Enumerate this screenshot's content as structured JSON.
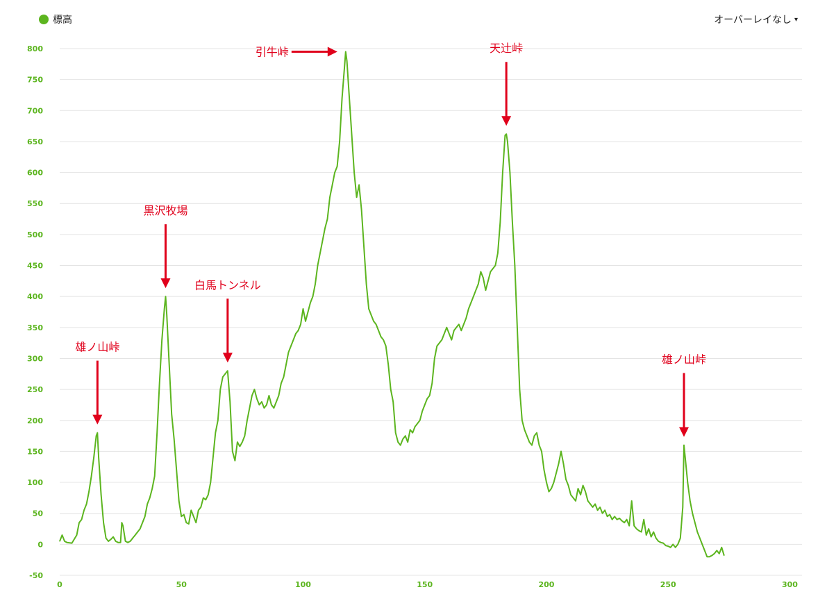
{
  "legend": {
    "label": "標高",
    "color": "#5cb51f"
  },
  "overlay": {
    "label": "オーバーレイなし",
    "caret_icon": "triangle-down-icon",
    "caret_char": "▾"
  },
  "colors": {
    "series": "#5cb51f",
    "axis_label": "#5cb51f",
    "grid": "#e4e4e4",
    "annotation": "#e0001b"
  },
  "chart_data": {
    "type": "line",
    "xlim": [
      0,
      305
    ],
    "ylim": [
      -50,
      800
    ],
    "yticks": [
      -50,
      0,
      50,
      100,
      150,
      200,
      250,
      300,
      350,
      400,
      450,
      500,
      550,
      600,
      650,
      700,
      750,
      800
    ],
    "xticks": [
      0,
      50,
      100,
      150,
      200,
      250,
      300
    ],
    "grid": true,
    "series": [
      {
        "name": "標高",
        "points": [
          [
            0,
            5
          ],
          [
            1,
            15
          ],
          [
            2,
            5
          ],
          [
            3,
            3
          ],
          [
            5,
            2
          ],
          [
            7,
            15
          ],
          [
            8,
            35
          ],
          [
            9,
            40
          ],
          [
            10,
            55
          ],
          [
            11,
            65
          ],
          [
            12,
            85
          ],
          [
            13,
            110
          ],
          [
            14,
            140
          ],
          [
            15,
            175
          ],
          [
            15.5,
            180
          ],
          [
            16,
            140
          ],
          [
            17,
            80
          ],
          [
            18,
            35
          ],
          [
            19,
            10
          ],
          [
            20,
            5
          ],
          [
            21,
            8
          ],
          [
            22,
            12
          ],
          [
            23,
            5
          ],
          [
            24,
            3
          ],
          [
            25,
            3
          ],
          [
            25.5,
            35
          ],
          [
            26,
            30
          ],
          [
            27,
            5
          ],
          [
            28,
            3
          ],
          [
            29,
            5
          ],
          [
            30,
            10
          ],
          [
            31,
            15
          ],
          [
            32,
            20
          ],
          [
            33,
            25
          ],
          [
            34,
            35
          ],
          [
            35,
            45
          ],
          [
            36,
            65
          ],
          [
            37,
            75
          ],
          [
            38,
            90
          ],
          [
            39,
            110
          ],
          [
            40,
            180
          ],
          [
            41,
            260
          ],
          [
            42,
            330
          ],
          [
            43,
            380
          ],
          [
            43.5,
            400
          ],
          [
            44,
            370
          ],
          [
            45,
            290
          ],
          [
            46,
            210
          ],
          [
            47,
            170
          ],
          [
            48,
            120
          ],
          [
            49,
            70
          ],
          [
            50,
            45
          ],
          [
            51,
            48
          ],
          [
            52,
            35
          ],
          [
            53,
            33
          ],
          [
            54,
            55
          ],
          [
            55,
            45
          ],
          [
            56,
            35
          ],
          [
            57,
            55
          ],
          [
            58,
            60
          ],
          [
            59,
            75
          ],
          [
            60,
            72
          ],
          [
            61,
            80
          ],
          [
            62,
            100
          ],
          [
            63,
            140
          ],
          [
            64,
            180
          ],
          [
            65,
            200
          ],
          [
            66,
            250
          ],
          [
            67,
            270
          ],
          [
            68,
            275
          ],
          [
            69,
            280
          ],
          [
            70,
            230
          ],
          [
            71,
            150
          ],
          [
            72,
            135
          ],
          [
            73,
            165
          ],
          [
            74,
            158
          ],
          [
            75,
            165
          ],
          [
            76,
            175
          ],
          [
            77,
            200
          ],
          [
            78,
            220
          ],
          [
            79,
            240
          ],
          [
            80,
            250
          ],
          [
            81,
            235
          ],
          [
            82,
            225
          ],
          [
            83,
            230
          ],
          [
            84,
            220
          ],
          [
            85,
            225
          ],
          [
            86,
            240
          ],
          [
            87,
            225
          ],
          [
            88,
            220
          ],
          [
            89,
            230
          ],
          [
            90,
            240
          ],
          [
            91,
            260
          ],
          [
            92,
            270
          ],
          [
            93,
            290
          ],
          [
            94,
            310
          ],
          [
            95,
            320
          ],
          [
            96,
            330
          ],
          [
            97,
            340
          ],
          [
            98,
            345
          ],
          [
            99,
            355
          ],
          [
            100,
            380
          ],
          [
            101,
            360
          ],
          [
            102,
            375
          ],
          [
            103,
            390
          ],
          [
            104,
            400
          ],
          [
            105,
            420
          ],
          [
            106,
            450
          ],
          [
            107,
            470
          ],
          [
            108,
            490
          ],
          [
            109,
            510
          ],
          [
            110,
            525
          ],
          [
            111,
            560
          ],
          [
            112,
            580
          ],
          [
            113,
            600
          ],
          [
            114,
            610
          ],
          [
            115,
            650
          ],
          [
            116,
            720
          ],
          [
            117,
            770
          ],
          [
            117.5,
            795
          ],
          [
            118,
            780
          ],
          [
            119,
            720
          ],
          [
            120,
            660
          ],
          [
            121,
            600
          ],
          [
            122,
            560
          ],
          [
            123,
            580
          ],
          [
            124,
            540
          ],
          [
            125,
            480
          ],
          [
            126,
            420
          ],
          [
            127,
            380
          ],
          [
            128,
            370
          ],
          [
            129,
            360
          ],
          [
            130,
            355
          ],
          [
            131,
            345
          ],
          [
            132,
            335
          ],
          [
            133,
            330
          ],
          [
            134,
            320
          ],
          [
            135,
            290
          ],
          [
            136,
            250
          ],
          [
            137,
            230
          ],
          [
            138,
            180
          ],
          [
            139,
            165
          ],
          [
            140,
            160
          ],
          [
            141,
            170
          ],
          [
            142,
            175
          ],
          [
            143,
            165
          ],
          [
            144,
            185
          ],
          [
            145,
            180
          ],
          [
            146,
            190
          ],
          [
            147,
            195
          ],
          [
            148,
            200
          ],
          [
            149,
            215
          ],
          [
            150,
            225
          ],
          [
            151,
            235
          ],
          [
            152,
            240
          ],
          [
            153,
            260
          ],
          [
            154,
            300
          ],
          [
            155,
            320
          ],
          [
            156,
            325
          ],
          [
            157,
            330
          ],
          [
            158,
            340
          ],
          [
            159,
            350
          ],
          [
            160,
            340
          ],
          [
            161,
            330
          ],
          [
            162,
            345
          ],
          [
            163,
            350
          ],
          [
            164,
            355
          ],
          [
            165,
            345
          ],
          [
            166,
            355
          ],
          [
            167,
            365
          ],
          [
            168,
            380
          ],
          [
            169,
            390
          ],
          [
            170,
            400
          ],
          [
            171,
            410
          ],
          [
            172,
            420
          ],
          [
            173,
            440
          ],
          [
            174,
            430
          ],
          [
            175,
            410
          ],
          [
            176,
            425
          ],
          [
            177,
            440
          ],
          [
            178,
            445
          ],
          [
            179,
            450
          ],
          [
            180,
            470
          ],
          [
            181,
            520
          ],
          [
            182,
            600
          ],
          [
            183,
            660
          ],
          [
            183.5,
            662
          ],
          [
            184,
            650
          ],
          [
            185,
            600
          ],
          [
            186,
            520
          ],
          [
            187,
            450
          ],
          [
            188,
            350
          ],
          [
            189,
            250
          ],
          [
            190,
            200
          ],
          [
            191,
            185
          ],
          [
            192,
            175
          ],
          [
            193,
            165
          ],
          [
            194,
            160
          ],
          [
            195,
            175
          ],
          [
            196,
            180
          ],
          [
            197,
            160
          ],
          [
            198,
            150
          ],
          [
            199,
            120
          ],
          [
            200,
            100
          ],
          [
            201,
            85
          ],
          [
            202,
            90
          ],
          [
            203,
            100
          ],
          [
            204,
            115
          ],
          [
            205,
            130
          ],
          [
            206,
            150
          ],
          [
            207,
            130
          ],
          [
            208,
            105
          ],
          [
            209,
            95
          ],
          [
            210,
            80
          ],
          [
            211,
            75
          ],
          [
            212,
            70
          ],
          [
            213,
            90
          ],
          [
            214,
            80
          ],
          [
            215,
            95
          ],
          [
            216,
            85
          ],
          [
            217,
            70
          ],
          [
            218,
            65
          ],
          [
            219,
            60
          ],
          [
            220,
            65
          ],
          [
            221,
            55
          ],
          [
            222,
            60
          ],
          [
            223,
            50
          ],
          [
            224,
            55
          ],
          [
            225,
            45
          ],
          [
            226,
            48
          ],
          [
            227,
            40
          ],
          [
            228,
            45
          ],
          [
            229,
            40
          ],
          [
            230,
            42
          ],
          [
            231,
            38
          ],
          [
            232,
            35
          ],
          [
            233,
            40
          ],
          [
            234,
            30
          ],
          [
            235,
            70
          ],
          [
            236,
            30
          ],
          [
            237,
            25
          ],
          [
            238,
            22
          ],
          [
            239,
            20
          ],
          [
            240,
            40
          ],
          [
            241,
            15
          ],
          [
            242,
            25
          ],
          [
            243,
            12
          ],
          [
            244,
            20
          ],
          [
            245,
            10
          ],
          [
            246,
            5
          ],
          [
            247,
            3
          ],
          [
            248,
            2
          ],
          [
            249,
            -2
          ],
          [
            250,
            -3
          ],
          [
            251,
            -5
          ],
          [
            252,
            0
          ],
          [
            253,
            -5
          ],
          [
            254,
            0
          ],
          [
            255,
            10
          ],
          [
            256,
            60
          ],
          [
            256.5,
            160
          ],
          [
            257,
            140
          ],
          [
            258,
            100
          ],
          [
            259,
            70
          ],
          [
            260,
            50
          ],
          [
            261,
            35
          ],
          [
            262,
            20
          ],
          [
            263,
            10
          ],
          [
            264,
            0
          ],
          [
            265,
            -10
          ],
          [
            266,
            -20
          ],
          [
            267,
            -20
          ],
          [
            268,
            -18
          ],
          [
            269,
            -15
          ],
          [
            270,
            -10
          ],
          [
            271,
            -15
          ],
          [
            272,
            -5
          ],
          [
            273,
            -18
          ]
        ]
      }
    ],
    "annotations": [
      {
        "label": "雄ノ山峠",
        "x": 15.5,
        "y": 180,
        "direction": "down"
      },
      {
        "label": "黒沢牧場",
        "x": 43.5,
        "y": 400,
        "direction": "down"
      },
      {
        "label": "白馬トンネル",
        "x": 69,
        "y": 280,
        "direction": "down"
      },
      {
        "label": "引牛峠",
        "x": 117.5,
        "y": 795,
        "direction": "right"
      },
      {
        "label": "天辻峠",
        "x": 183.5,
        "y": 662,
        "direction": "down"
      },
      {
        "label": "雄ノ山峠",
        "x": 256.5,
        "y": 160,
        "direction": "down"
      }
    ]
  }
}
